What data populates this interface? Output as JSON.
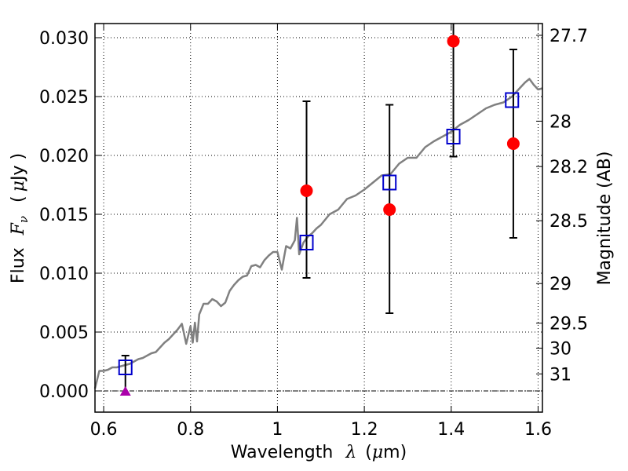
{
  "chart_data": {
    "type": "scatter",
    "xlabel": {
      "text": "Wavelength",
      "symbol": "λ",
      "unit_open": "(",
      "unit_mu": "μ",
      "unit_rest": "m)"
    },
    "ylabel": {
      "text": "Flux",
      "symbol": "F",
      "subscript": "ν",
      "unit_open": "(",
      "unit_mu": "μ",
      "unit_rest": "Jy )"
    },
    "y2label": "Magnitude (AB)",
    "xlim": [
      0.58,
      1.61
    ],
    "ylim": [
      -0.0018,
      0.0312
    ],
    "grid": true,
    "x_ticks": [
      {
        "v": 0.6,
        "label": "0.6"
      },
      {
        "v": 0.8,
        "label": "0.8"
      },
      {
        "v": 1.0,
        "label": "1"
      },
      {
        "v": 1.2,
        "label": "1.2"
      },
      {
        "v": 1.4,
        "label": "1.4"
      },
      {
        "v": 1.6,
        "label": "1.6"
      }
    ],
    "y_ticks": [
      {
        "v": 0.0,
        "label": "0.000"
      },
      {
        "v": 0.005,
        "label": "0.005"
      },
      {
        "v": 0.01,
        "label": "0.010"
      },
      {
        "v": 0.015,
        "label": "0.015"
      },
      {
        "v": 0.02,
        "label": "0.020"
      },
      {
        "v": 0.025,
        "label": "0.025"
      },
      {
        "v": 0.03,
        "label": "0.030"
      }
    ],
    "mag_ticks": [
      {
        "mag": 27.7,
        "label": "27.7"
      },
      {
        "mag": 28,
        "label": "28"
      },
      {
        "mag": 28.2,
        "label": "28.2"
      },
      {
        "mag": 28.5,
        "label": "28.5"
      },
      {
        "mag": 29,
        "label": "29"
      },
      {
        "mag": 29.5,
        "label": "29.5"
      },
      {
        "mag": 30,
        "label": "30"
      },
      {
        "mag": 31,
        "label": "31"
      }
    ],
    "series": [
      {
        "marker": "line",
        "color": "#808080",
        "x": [
          0.58,
          0.59,
          0.6,
          0.61,
          0.62,
          0.63,
          0.64,
          0.65,
          0.66,
          0.67,
          0.68,
          0.69,
          0.7,
          0.71,
          0.72,
          0.73,
          0.74,
          0.75,
          0.76,
          0.77,
          0.78,
          0.79,
          0.8,
          0.805,
          0.81,
          0.815,
          0.82,
          0.83,
          0.84,
          0.85,
          0.86,
          0.87,
          0.88,
          0.89,
          0.9,
          0.91,
          0.92,
          0.93,
          0.94,
          0.95,
          0.96,
          0.97,
          0.98,
          0.99,
          1.0,
          1.01,
          1.015,
          1.02,
          1.03,
          1.04,
          1.045,
          1.05,
          1.06,
          1.07,
          1.08,
          1.09,
          1.1,
          1.12,
          1.14,
          1.16,
          1.18,
          1.2,
          1.22,
          1.24,
          1.26,
          1.28,
          1.3,
          1.32,
          1.34,
          1.36,
          1.38,
          1.4,
          1.42,
          1.44,
          1.46,
          1.48,
          1.5,
          1.52,
          1.54,
          1.56,
          1.57,
          1.58,
          1.59,
          1.6,
          1.61
        ],
        "y": [
          0.0002,
          0.0017,
          0.0017,
          0.0018,
          0.002,
          0.002,
          0.0021,
          0.0022,
          0.0023,
          0.0025,
          0.0027,
          0.0028,
          0.003,
          0.0032,
          0.0033,
          0.0037,
          0.0041,
          0.0044,
          0.0048,
          0.0052,
          0.0057,
          0.004,
          0.0055,
          0.0041,
          0.0058,
          0.0042,
          0.0065,
          0.0074,
          0.0074,
          0.0078,
          0.0076,
          0.0072,
          0.0075,
          0.0085,
          0.009,
          0.0094,
          0.0097,
          0.0098,
          0.0106,
          0.0107,
          0.0105,
          0.0111,
          0.0115,
          0.0118,
          0.0118,
          0.0103,
          0.0113,
          0.0123,
          0.0121,
          0.0128,
          0.0147,
          0.0116,
          0.0126,
          0.0131,
          0.0134,
          0.0138,
          0.0141,
          0.015,
          0.0154,
          0.0163,
          0.0166,
          0.0171,
          0.0177,
          0.0183,
          0.0184,
          0.0193,
          0.0198,
          0.0198,
          0.0207,
          0.0212,
          0.0216,
          0.022,
          0.0226,
          0.023,
          0.0235,
          0.024,
          0.0243,
          0.0245,
          0.025,
          0.0258,
          0.0262,
          0.0265,
          0.026,
          0.0256,
          0.0257
        ]
      },
      {
        "marker": "open-square",
        "color": "#0000cc",
        "x": [
          0.65,
          1.067,
          1.258,
          1.405,
          1.54
        ],
        "y": [
          0.002,
          0.0126,
          0.0177,
          0.0216,
          0.0247
        ]
      },
      {
        "marker": "filled-circle",
        "color": "#ff0000",
        "x": [
          1.067,
          1.258,
          1.405,
          1.543
        ],
        "y": [
          0.017,
          0.0154,
          0.0297,
          0.021
        ],
        "yerr_low": [
          0.0074,
          0.0088,
          0.0098,
          0.008
        ],
        "yerr_high": [
          0.0076,
          0.0089,
          0.0117,
          0.008
        ]
      },
      {
        "marker": "triangle",
        "color": "#aa00aa",
        "x": [
          0.65
        ],
        "y": [
          0.0
        ],
        "yerr_low": [
          0.0
        ],
        "yerr_high": [
          0.003
        ]
      }
    ]
  }
}
